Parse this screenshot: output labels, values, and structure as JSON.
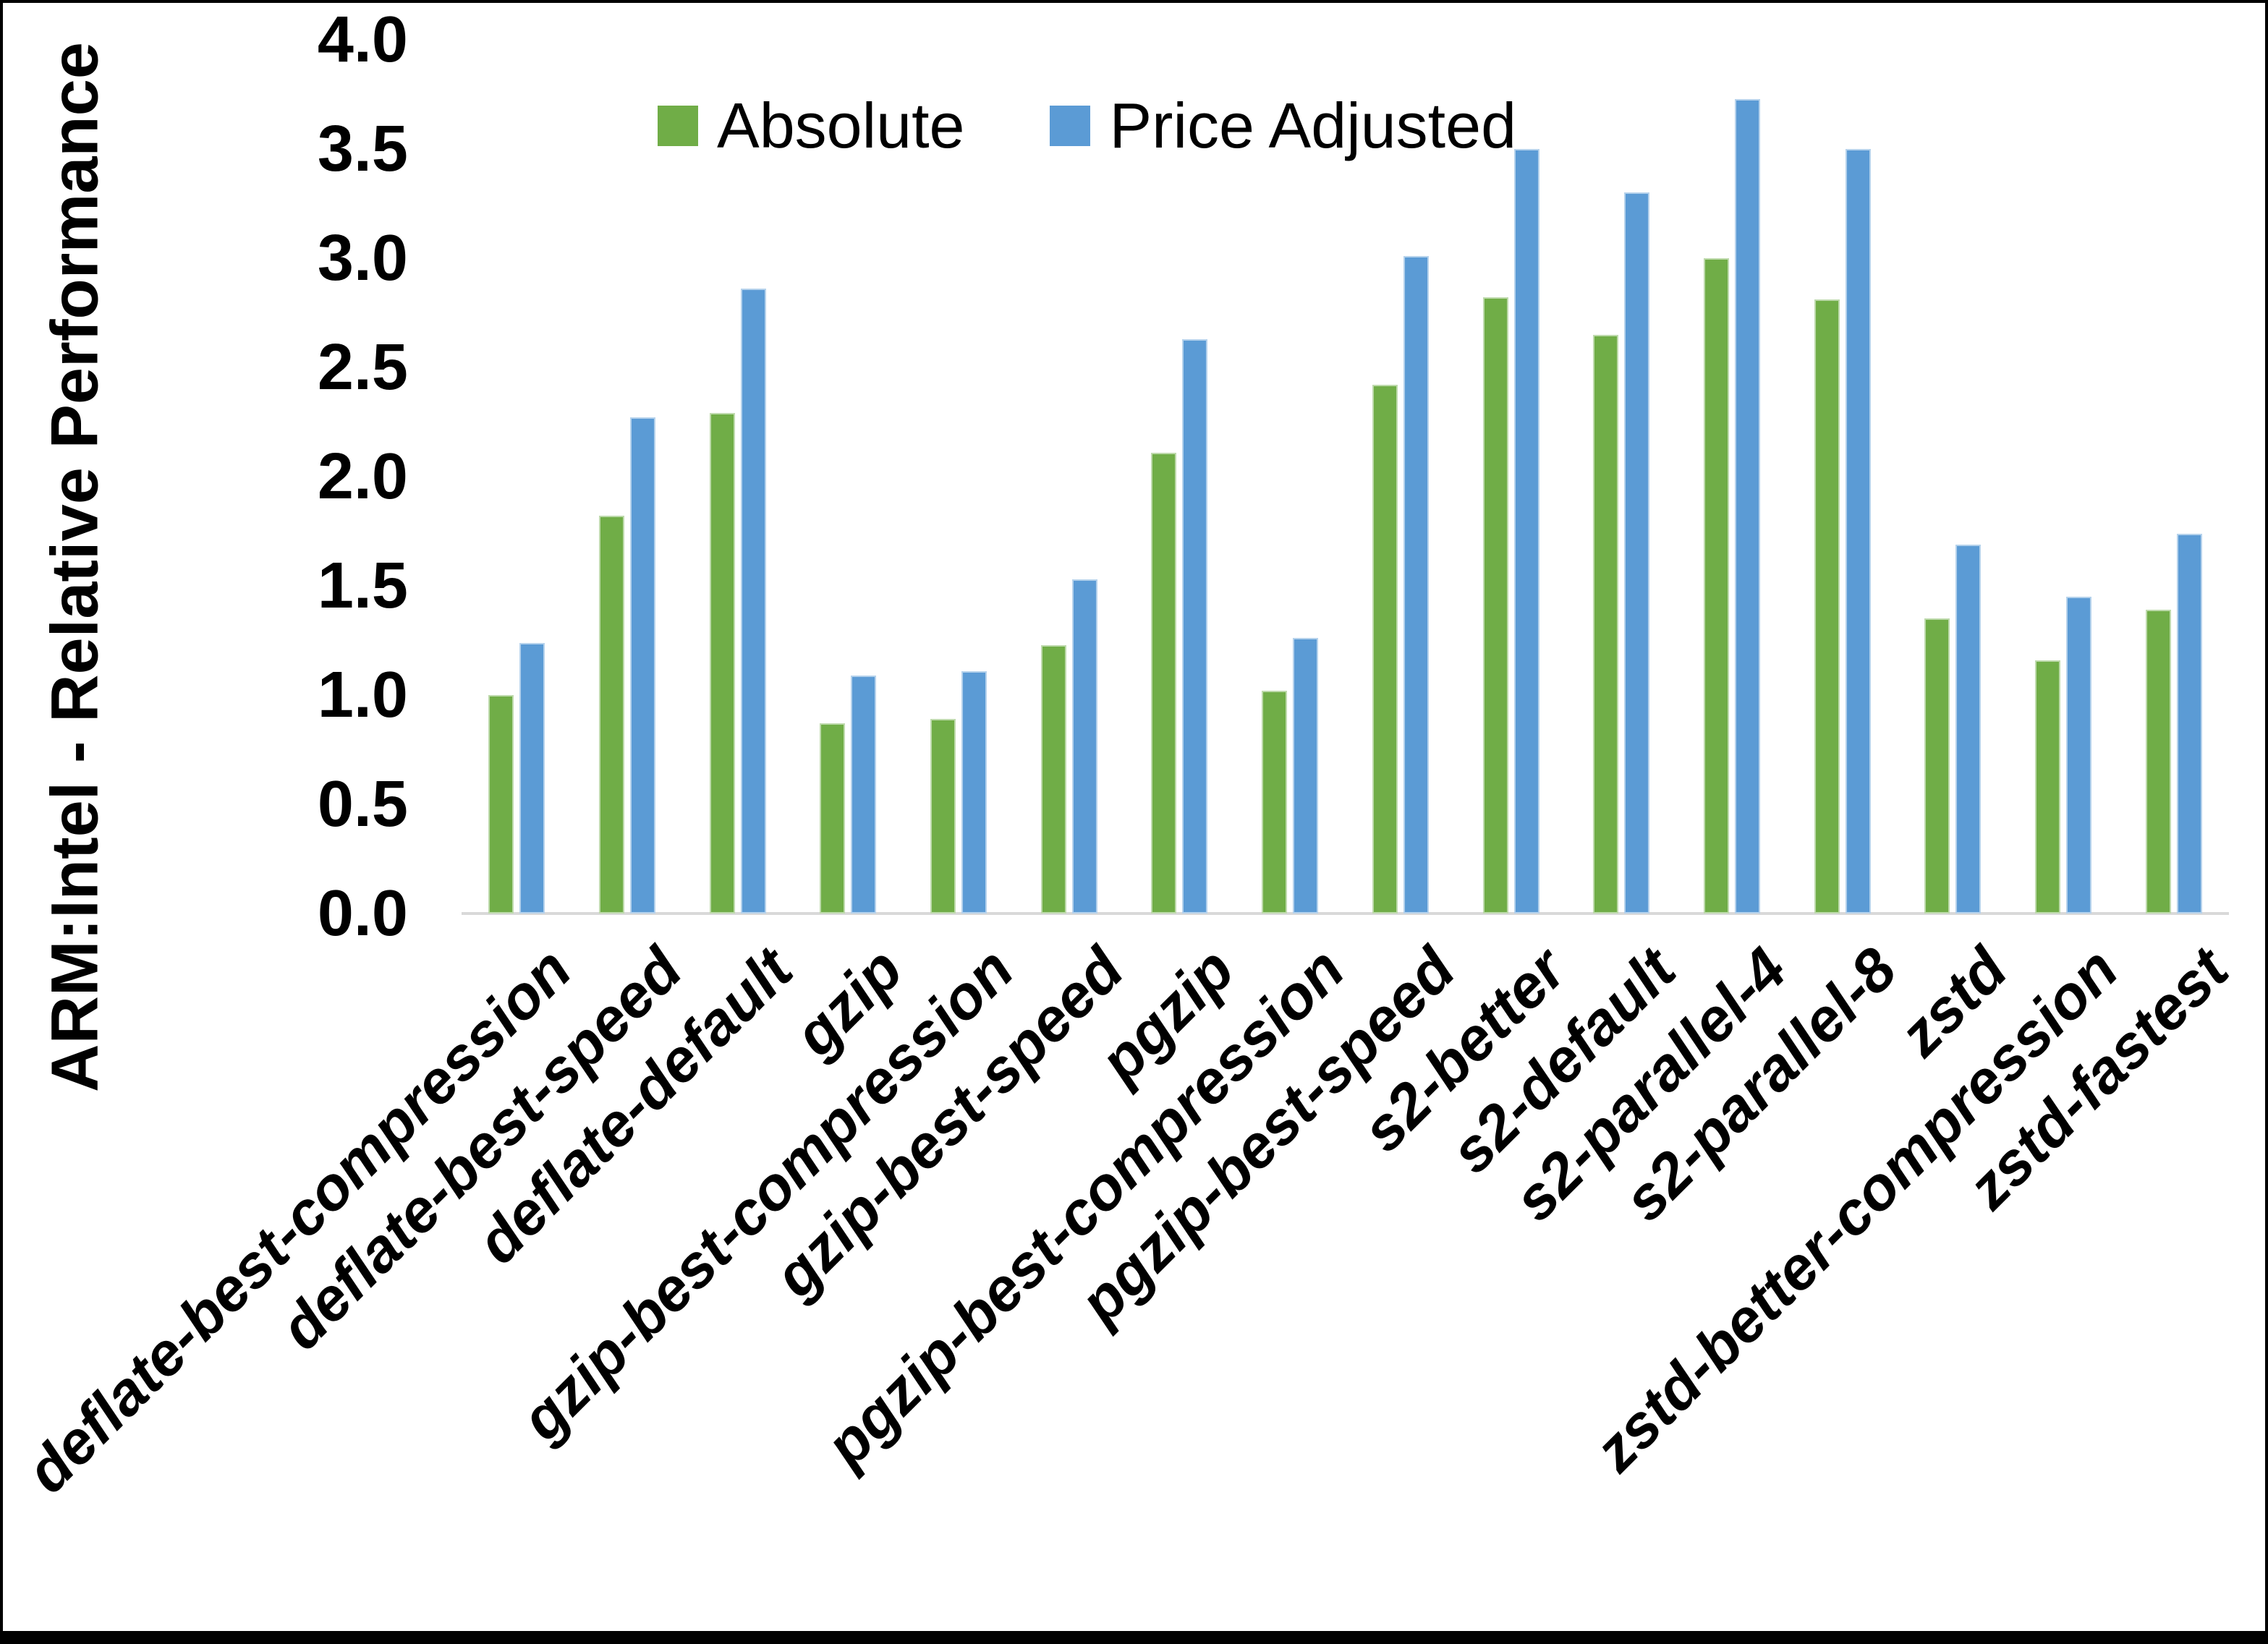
{
  "figure": {
    "background_color": "#ffffff",
    "border_color": "#000000"
  },
  "chart_data": {
    "type": "bar",
    "title": "",
    "xlabel": "",
    "ylabel": "ARM:Intel - Relative Performance",
    "ylim": [
      0.0,
      4.0
    ],
    "ytick_step": 0.5,
    "yticks": [
      "4.0",
      "3.5",
      "3.0",
      "2.5",
      "2.0",
      "1.5",
      "1.0",
      "0.5",
      "0.0"
    ],
    "grid": false,
    "legend_position": "top",
    "axis_line_color": "#d9d9d9",
    "categories": [
      "deflate-best-compression",
      "deflate-best-speed",
      "deflate-default",
      "gzip",
      "gzip-best-compression",
      "gzip-best-speed",
      "pgzip",
      "pgzip-best-compression",
      "pgzip-best-speed",
      "s2-better",
      "s2-default",
      "s2-parallel-4",
      "s2-parallel-8",
      "zstd",
      "zstd-better-compression",
      "zstd-fastest"
    ],
    "series": [
      {
        "name": "Absolute",
        "color": "#70AD47",
        "values": [
          1.0,
          1.82,
          2.29,
          0.87,
          0.89,
          1.23,
          2.11,
          1.02,
          2.42,
          2.82,
          2.65,
          3.0,
          2.81,
          1.35,
          1.16,
          1.39
        ]
      },
      {
        "name": "Price Adjusted",
        "color": "#5B9BD5",
        "values": [
          1.24,
          2.27,
          2.86,
          1.09,
          1.11,
          1.53,
          2.63,
          1.26,
          3.01,
          3.5,
          3.3,
          3.73,
          3.5,
          1.69,
          1.45,
          1.74
        ]
      }
    ]
  }
}
